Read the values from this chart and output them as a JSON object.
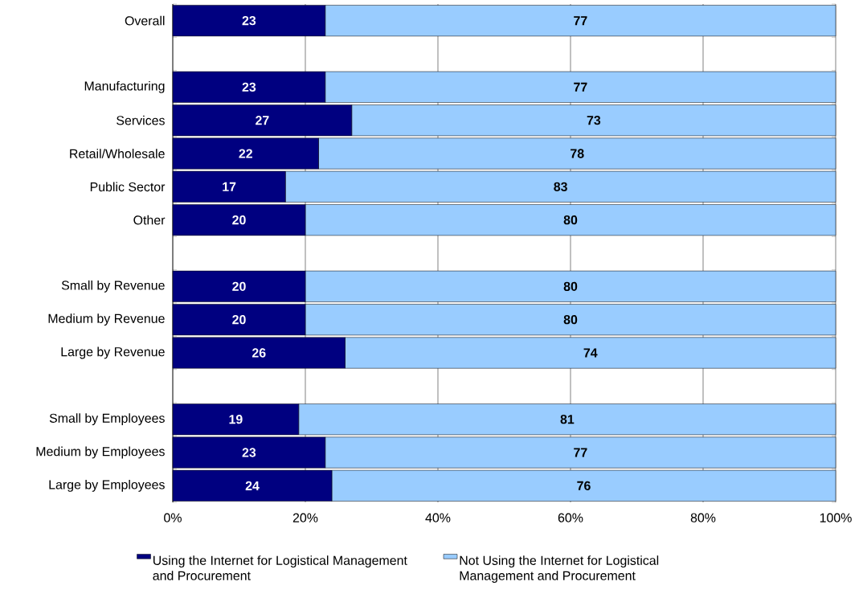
{
  "chart_data": {
    "type": "bar",
    "orientation": "horizontal",
    "stacked": true,
    "data_labels": true,
    "grid": "x",
    "legend": "bottom",
    "categories": [
      "Overall",
      null,
      "Manufacturing",
      "Services",
      "Retail/Wholesale",
      "Public Sector",
      "Other",
      null,
      "Small by Revenue",
      "Medium by Revenue",
      "Large by Revenue",
      null,
      "Small by Employees",
      "Medium by Employees",
      "Large by Employees"
    ],
    "series": [
      {
        "name": "Using the Internet for Logistical Management and Procurement",
        "color": "#000080",
        "values": [
          23,
          null,
          23,
          27,
          22,
          17,
          20,
          null,
          20,
          20,
          26,
          null,
          19,
          23,
          24
        ]
      },
      {
        "name": "Not Using the Internet for Logistical Management and Procurement",
        "color": "#99ccff",
        "values": [
          77,
          null,
          77,
          73,
          78,
          83,
          80,
          null,
          80,
          80,
          74,
          null,
          81,
          77,
          76
        ]
      }
    ],
    "xlim": [
      0,
      100
    ],
    "xticks": [
      {
        "value": 0,
        "label": "0%"
      },
      {
        "value": 20,
        "label": "20%"
      },
      {
        "value": 40,
        "label": "40%"
      },
      {
        "value": 60,
        "label": "60%"
      },
      {
        "value": 80,
        "label": "80%"
      },
      {
        "value": 100,
        "label": "100%"
      }
    ]
  }
}
